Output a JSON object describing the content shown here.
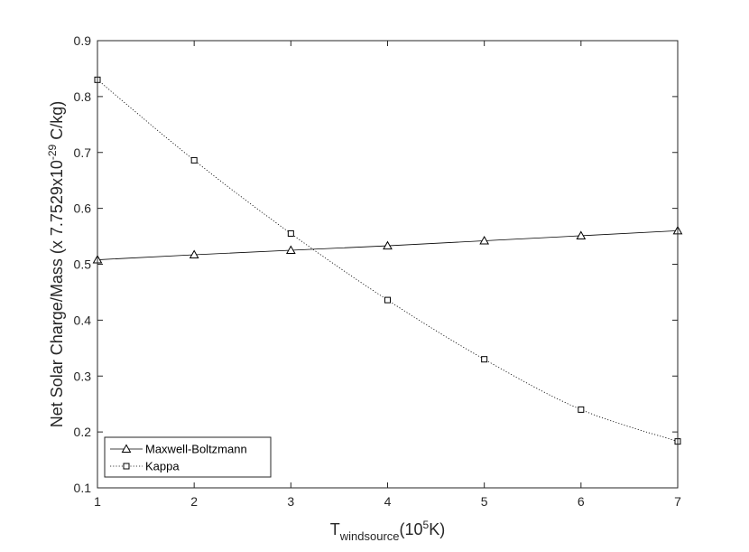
{
  "chart_data": {
    "type": "line",
    "x": [
      1,
      2,
      3,
      4,
      5,
      6,
      7
    ],
    "series": [
      {
        "name": "Maxwell-Boltzmann",
        "values": [
          0.508,
          0.517,
          0.525,
          0.533,
          0.542,
          0.551,
          0.56
        ],
        "marker": "triangle",
        "line_style": "solid",
        "color": "#000000"
      },
      {
        "name": "Kappa",
        "values": [
          0.83,
          0.686,
          0.555,
          0.436,
          0.33,
          0.24,
          0.183
        ],
        "marker": "square",
        "line_style": "dotted",
        "color": "#000000"
      }
    ],
    "xlabel": {
      "main": "T",
      "sub": "windsource",
      "paren_open": "(10",
      "sup": "5",
      "paren_close": "K)"
    },
    "ylabel": {
      "main": "Net Solar Charge/Mass (x 7.7529x10",
      "sup": "-29",
      "tail": " C/kg)"
    },
    "xlim": [
      1,
      7
    ],
    "ylim": [
      0.1,
      0.9
    ],
    "xticks": [
      "1",
      "2",
      "3",
      "4",
      "5",
      "6",
      "7"
    ],
    "yticks": [
      "0.1",
      "0.2",
      "0.3",
      "0.4",
      "0.5",
      "0.6",
      "0.7",
      "0.8",
      "0.9"
    ],
    "grid": false,
    "legend_position": "bottom-left"
  }
}
